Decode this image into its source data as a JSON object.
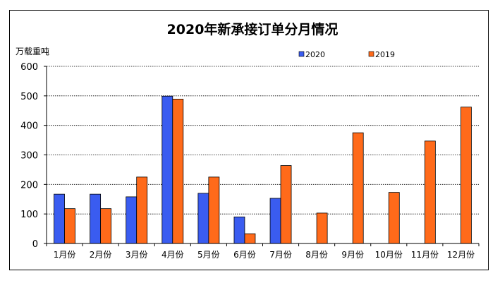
{
  "chart_data": {
    "type": "bar",
    "title": "2020年新承接订单分月情况",
    "ylabel": "万载重吨",
    "xlabel": "",
    "ylim": [
      0,
      600
    ],
    "yticks": [
      0,
      100,
      200,
      300,
      400,
      500,
      600
    ],
    "grid": true,
    "legend_position": "top-right",
    "categories": [
      "1月份",
      "2月份",
      "3月份",
      "4月份",
      "5月份",
      "6月份",
      "7月份",
      "8月份",
      "9月份",
      "10月份",
      "11月份",
      "12月份"
    ],
    "series": [
      {
        "name": "2020",
        "color": "#3a5cf0",
        "values": [
          167,
          167,
          158,
          499,
          170,
          90,
          153,
          null,
          null,
          null,
          null,
          null
        ]
      },
      {
        "name": "2019",
        "color": "#ff6a1a",
        "values": [
          118,
          118,
          225,
          489,
          225,
          33,
          264,
          103,
          375,
          173,
          347,
          462
        ]
      }
    ]
  }
}
